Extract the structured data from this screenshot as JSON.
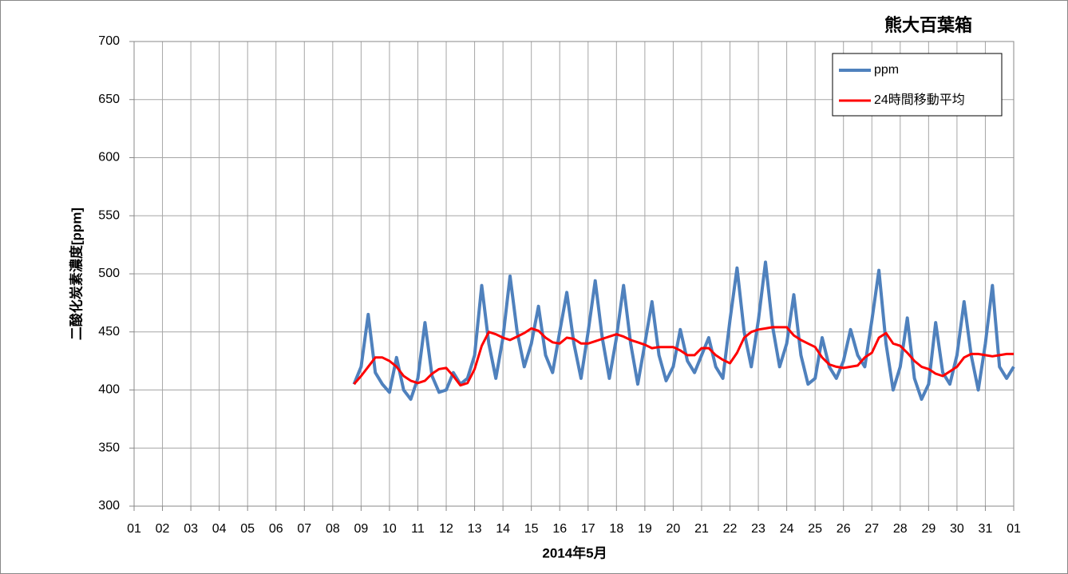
{
  "chart_data": {
    "type": "line",
    "title": "熊大百葉箱",
    "x_label": "2014年5月",
    "y_label": "二酸化炭素濃度[ppm]",
    "xlim": [
      1,
      32
    ],
    "ylim": [
      300,
      700
    ],
    "yticks": [
      300,
      350,
      400,
      450,
      500,
      550,
      600,
      650,
      700
    ],
    "xticks": [
      {
        "value": 1,
        "label": "01"
      },
      {
        "value": 2,
        "label": "02"
      },
      {
        "value": 3,
        "label": "03"
      },
      {
        "value": 4,
        "label": "04"
      },
      {
        "value": 5,
        "label": "05"
      },
      {
        "value": 6,
        "label": "06"
      },
      {
        "value": 7,
        "label": "07"
      },
      {
        "value": 8,
        "label": "08"
      },
      {
        "value": 9,
        "label": "09"
      },
      {
        "value": 10,
        "label": "10"
      },
      {
        "value": 11,
        "label": "11"
      },
      {
        "value": 12,
        "label": "12"
      },
      {
        "value": 13,
        "label": "13"
      },
      {
        "value": 14,
        "label": "14"
      },
      {
        "value": 15,
        "label": "15"
      },
      {
        "value": 16,
        "label": "16"
      },
      {
        "value": 17,
        "label": "17"
      },
      {
        "value": 18,
        "label": "18"
      },
      {
        "value": 19,
        "label": "19"
      },
      {
        "value": 20,
        "label": "20"
      },
      {
        "value": 21,
        "label": "21"
      },
      {
        "value": 22,
        "label": "22"
      },
      {
        "value": 23,
        "label": "23"
      },
      {
        "value": 24,
        "label": "24"
      },
      {
        "value": 25,
        "label": "25"
      },
      {
        "value": 26,
        "label": "26"
      },
      {
        "value": 27,
        "label": "27"
      },
      {
        "value": 28,
        "label": "28"
      },
      {
        "value": 29,
        "label": "29"
      },
      {
        "value": 30,
        "label": "30"
      },
      {
        "value": 31,
        "label": "31"
      },
      {
        "value": 32,
        "label": "01"
      }
    ],
    "grid": true,
    "legend": "upper right",
    "x": [
      8.75,
      9,
      9.25,
      9.5,
      9.75,
      10,
      10.25,
      10.5,
      10.75,
      11,
      11.25,
      11.5,
      11.75,
      12,
      12.25,
      12.5,
      12.75,
      13,
      13.25,
      13.5,
      13.75,
      14,
      14.25,
      14.5,
      14.75,
      15,
      15.25,
      15.5,
      15.75,
      16,
      16.25,
      16.5,
      16.75,
      17,
      17.25,
      17.5,
      17.75,
      18,
      18.25,
      18.5,
      18.75,
      19,
      19.25,
      19.5,
      19.75,
      20,
      20.25,
      20.5,
      20.75,
      21,
      21.25,
      21.5,
      21.75,
      22,
      22.25,
      22.5,
      22.75,
      23,
      23.25,
      23.5,
      23.75,
      24,
      24.25,
      24.5,
      24.75,
      25,
      25.25,
      25.5,
      25.75,
      26,
      26.25,
      26.5,
      26.75,
      27,
      27.25,
      27.5,
      27.75,
      28,
      28.25,
      28.5,
      28.75,
      29,
      29.25,
      29.5,
      29.75,
      30,
      30.25,
      30.5,
      30.75,
      31,
      31.25,
      31.5,
      31.75,
      32
    ],
    "series": [
      {
        "name": "ppm",
        "color": "#4f81bd",
        "width": 4,
        "values": [
          405,
          420,
          465,
          415,
          405,
          398,
          428,
          400,
          392,
          410,
          458,
          412,
          398,
          400,
          415,
          405,
          410,
          430,
          490,
          440,
          410,
          445,
          498,
          450,
          420,
          440,
          472,
          430,
          415,
          450,
          484,
          440,
          410,
          450,
          494,
          445,
          410,
          445,
          490,
          440,
          405,
          440,
          476,
          430,
          408,
          420,
          452,
          425,
          415,
          430,
          445,
          420,
          410,
          460,
          505,
          450,
          420,
          460,
          510,
          455,
          420,
          440,
          482,
          430,
          405,
          410,
          445,
          420,
          410,
          425,
          452,
          430,
          420,
          460,
          503,
          440,
          400,
          420,
          462,
          410,
          392,
          405,
          458,
          415,
          405,
          430,
          476,
          430,
          400,
          440,
          490,
          420,
          410,
          420
        ]
      },
      {
        "name": "24時間移動平均",
        "color": "#ff0000",
        "width": 3,
        "values": [
          405,
          412,
          420,
          428,
          428,
          425,
          420,
          412,
          408,
          406,
          408,
          414,
          418,
          419,
          412,
          404,
          406,
          418,
          438,
          450,
          448,
          445,
          443,
          446,
          449,
          453,
          451,
          445,
          441,
          440,
          445,
          444,
          440,
          440,
          442,
          444,
          446,
          448,
          446,
          443,
          441,
          439,
          436,
          437,
          437,
          437,
          434,
          430,
          430,
          436,
          436,
          430,
          426,
          423,
          432,
          445,
          450,
          452,
          453,
          454,
          454,
          454,
          447,
          443,
          440,
          437,
          428,
          422,
          420,
          419,
          420,
          421,
          428,
          432,
          445,
          449,
          440,
          438,
          432,
          425,
          420,
          418,
          414,
          412,
          416,
          420,
          428,
          431,
          431,
          430,
          429,
          430,
          431,
          431
        ]
      }
    ]
  }
}
